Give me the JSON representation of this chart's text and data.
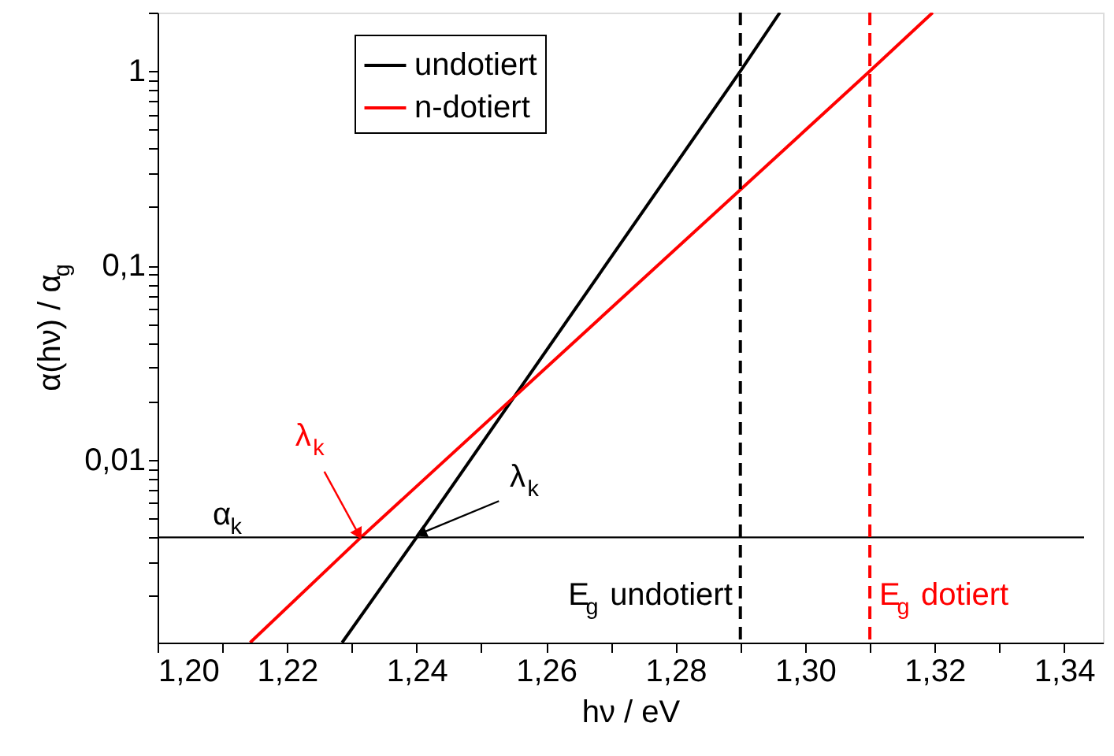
{
  "chart_data": {
    "type": "line",
    "xlabel": "hν / eV",
    "ylabel": "α(hν) / α$_{g}$",
    "series": [
      {
        "name": "undotiert",
        "color": "#000000",
        "x": [
          1.2285,
          1.24,
          1.29,
          1.2961
        ],
        "values": [
          0.00115,
          0.004,
          1,
          2.0
        ]
      },
      {
        "name": "n-dotiert",
        "color": "#ff0000",
        "x": [
          1.2143,
          1.2314,
          1.31,
          1.3197
        ],
        "values": [
          0.00115,
          0.004,
          1,
          2.0
        ]
      }
    ],
    "log": "y",
    "xlim": [
      1.2,
      1.346
    ],
    "ylim": [
      0.00115,
      2.0
    ],
    "xticks": [
      {
        "value": 1.2,
        "label": "1,20"
      },
      {
        "value": 1.21,
        "label": null
      },
      {
        "value": 1.22,
        "label": "1,22"
      },
      {
        "value": 1.23,
        "label": null
      },
      {
        "value": 1.24,
        "label": "1,24"
      },
      {
        "value": 1.25,
        "label": null
      },
      {
        "value": 1.26,
        "label": "1,26"
      },
      {
        "value": 1.27,
        "label": null
      },
      {
        "value": 1.28,
        "label": "1,28"
      },
      {
        "value": 1.29,
        "label": null
      },
      {
        "value": 1.3,
        "label": "1,30"
      },
      {
        "value": 1.31,
        "label": null
      },
      {
        "value": 1.32,
        "label": "1,32"
      },
      {
        "value": 1.33,
        "label": null
      },
      {
        "value": 1.34,
        "label": "1,34"
      }
    ],
    "yticks": [
      {
        "value": 0.002,
        "label": null
      },
      {
        "value": 0.003,
        "label": null
      },
      {
        "value": 0.004,
        "label": null
      },
      {
        "value": 0.005,
        "label": null
      },
      {
        "value": 0.006,
        "label": null
      },
      {
        "value": 0.007,
        "label": null
      },
      {
        "value": 0.008,
        "label": null
      },
      {
        "value": 0.009,
        "label": null
      },
      {
        "value": 0.01,
        "label": "0,01"
      },
      {
        "value": 0.02,
        "label": null
      },
      {
        "value": 0.03,
        "label": null
      },
      {
        "value": 0.04,
        "label": null
      },
      {
        "value": 0.05,
        "label": null
      },
      {
        "value": 0.06,
        "label": null
      },
      {
        "value": 0.07,
        "label": null
      },
      {
        "value": 0.08,
        "label": null
      },
      {
        "value": 0.09,
        "label": null
      },
      {
        "value": 0.1,
        "label": "0,1"
      },
      {
        "value": 0.2,
        "label": null
      },
      {
        "value": 0.3,
        "label": null
      },
      {
        "value": 0.4,
        "label": null
      },
      {
        "value": 0.5,
        "label": null
      },
      {
        "value": 0.6,
        "label": null
      },
      {
        "value": 0.7,
        "label": null
      },
      {
        "value": 0.8,
        "label": null
      },
      {
        "value": 0.9,
        "label": null
      },
      {
        "value": 1,
        "label": "1"
      },
      {
        "value": 2,
        "label": null
      }
    ],
    "ref_lines": [
      {
        "axis": "y",
        "value": 0.004,
        "label": "α$_{k}$",
        "color": "#000000",
        "line_style": "solid"
      },
      {
        "axis": "x",
        "value": 1.29,
        "label": "E$_{g}$ undotiert",
        "color": "#000000",
        "line_style": "dashed"
      },
      {
        "axis": "x",
        "value": 1.31,
        "label": "E$_{g}$ dotiert",
        "color": "#ff0000",
        "line_style": "dashed"
      }
    ],
    "annotations": [
      {
        "text": "λ$_{k}$",
        "x": 1.2397,
        "y": 0.004
      },
      {
        "text": "λ$_{k}$",
        "x": 1.2314,
        "y": 0.004
      }
    ],
    "legend": "top left",
    "grid": false,
    "marker": "none",
    "line_style": "solid"
  }
}
